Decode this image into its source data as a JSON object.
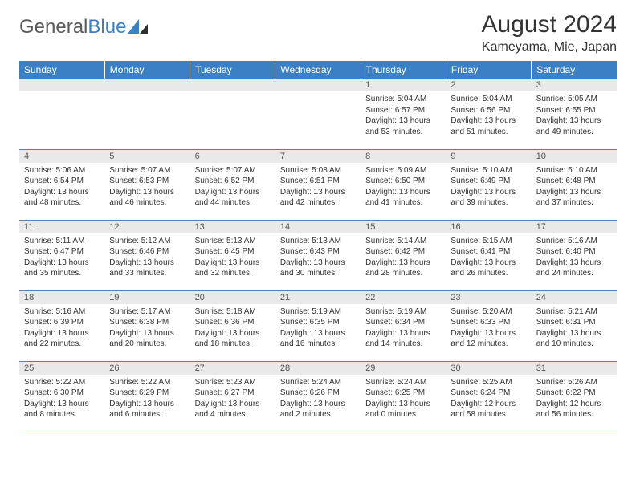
{
  "logo": {
    "text_part1": "General",
    "text_part2": "Blue"
  },
  "title": "August 2024",
  "subtitle": "Kameyama, Mie, Japan",
  "colors": {
    "header_bg": "#3b7fc4",
    "header_text": "#ffffff",
    "daynum_bg": "#e9e9e9",
    "cell_border": "#5a7fa8",
    "body_text": "#333333"
  },
  "typography": {
    "title_fontsize": 30,
    "subtitle_fontsize": 16,
    "weekday_fontsize": 12,
    "daynum_fontsize": 11,
    "body_fontsize": 10
  },
  "weekdays": [
    "Sunday",
    "Monday",
    "Tuesday",
    "Wednesday",
    "Thursday",
    "Friday",
    "Saturday"
  ],
  "weeks": [
    [
      null,
      null,
      null,
      null,
      {
        "n": "1",
        "sr": "Sunrise: 5:04 AM",
        "ss": "Sunset: 6:57 PM",
        "d1": "Daylight: 13 hours",
        "d2": "and 53 minutes."
      },
      {
        "n": "2",
        "sr": "Sunrise: 5:04 AM",
        "ss": "Sunset: 6:56 PM",
        "d1": "Daylight: 13 hours",
        "d2": "and 51 minutes."
      },
      {
        "n": "3",
        "sr": "Sunrise: 5:05 AM",
        "ss": "Sunset: 6:55 PM",
        "d1": "Daylight: 13 hours",
        "d2": "and 49 minutes."
      }
    ],
    [
      {
        "n": "4",
        "sr": "Sunrise: 5:06 AM",
        "ss": "Sunset: 6:54 PM",
        "d1": "Daylight: 13 hours",
        "d2": "and 48 minutes."
      },
      {
        "n": "5",
        "sr": "Sunrise: 5:07 AM",
        "ss": "Sunset: 6:53 PM",
        "d1": "Daylight: 13 hours",
        "d2": "and 46 minutes."
      },
      {
        "n": "6",
        "sr": "Sunrise: 5:07 AM",
        "ss": "Sunset: 6:52 PM",
        "d1": "Daylight: 13 hours",
        "d2": "and 44 minutes."
      },
      {
        "n": "7",
        "sr": "Sunrise: 5:08 AM",
        "ss": "Sunset: 6:51 PM",
        "d1": "Daylight: 13 hours",
        "d2": "and 42 minutes."
      },
      {
        "n": "8",
        "sr": "Sunrise: 5:09 AM",
        "ss": "Sunset: 6:50 PM",
        "d1": "Daylight: 13 hours",
        "d2": "and 41 minutes."
      },
      {
        "n": "9",
        "sr": "Sunrise: 5:10 AM",
        "ss": "Sunset: 6:49 PM",
        "d1": "Daylight: 13 hours",
        "d2": "and 39 minutes."
      },
      {
        "n": "10",
        "sr": "Sunrise: 5:10 AM",
        "ss": "Sunset: 6:48 PM",
        "d1": "Daylight: 13 hours",
        "d2": "and 37 minutes."
      }
    ],
    [
      {
        "n": "11",
        "sr": "Sunrise: 5:11 AM",
        "ss": "Sunset: 6:47 PM",
        "d1": "Daylight: 13 hours",
        "d2": "and 35 minutes."
      },
      {
        "n": "12",
        "sr": "Sunrise: 5:12 AM",
        "ss": "Sunset: 6:46 PM",
        "d1": "Daylight: 13 hours",
        "d2": "and 33 minutes."
      },
      {
        "n": "13",
        "sr": "Sunrise: 5:13 AM",
        "ss": "Sunset: 6:45 PM",
        "d1": "Daylight: 13 hours",
        "d2": "and 32 minutes."
      },
      {
        "n": "14",
        "sr": "Sunrise: 5:13 AM",
        "ss": "Sunset: 6:43 PM",
        "d1": "Daylight: 13 hours",
        "d2": "and 30 minutes."
      },
      {
        "n": "15",
        "sr": "Sunrise: 5:14 AM",
        "ss": "Sunset: 6:42 PM",
        "d1": "Daylight: 13 hours",
        "d2": "and 28 minutes."
      },
      {
        "n": "16",
        "sr": "Sunrise: 5:15 AM",
        "ss": "Sunset: 6:41 PM",
        "d1": "Daylight: 13 hours",
        "d2": "and 26 minutes."
      },
      {
        "n": "17",
        "sr": "Sunrise: 5:16 AM",
        "ss": "Sunset: 6:40 PM",
        "d1": "Daylight: 13 hours",
        "d2": "and 24 minutes."
      }
    ],
    [
      {
        "n": "18",
        "sr": "Sunrise: 5:16 AM",
        "ss": "Sunset: 6:39 PM",
        "d1": "Daylight: 13 hours",
        "d2": "and 22 minutes."
      },
      {
        "n": "19",
        "sr": "Sunrise: 5:17 AM",
        "ss": "Sunset: 6:38 PM",
        "d1": "Daylight: 13 hours",
        "d2": "and 20 minutes."
      },
      {
        "n": "20",
        "sr": "Sunrise: 5:18 AM",
        "ss": "Sunset: 6:36 PM",
        "d1": "Daylight: 13 hours",
        "d2": "and 18 minutes."
      },
      {
        "n": "21",
        "sr": "Sunrise: 5:19 AM",
        "ss": "Sunset: 6:35 PM",
        "d1": "Daylight: 13 hours",
        "d2": "and 16 minutes."
      },
      {
        "n": "22",
        "sr": "Sunrise: 5:19 AM",
        "ss": "Sunset: 6:34 PM",
        "d1": "Daylight: 13 hours",
        "d2": "and 14 minutes."
      },
      {
        "n": "23",
        "sr": "Sunrise: 5:20 AM",
        "ss": "Sunset: 6:33 PM",
        "d1": "Daylight: 13 hours",
        "d2": "and 12 minutes."
      },
      {
        "n": "24",
        "sr": "Sunrise: 5:21 AM",
        "ss": "Sunset: 6:31 PM",
        "d1": "Daylight: 13 hours",
        "d2": "and 10 minutes."
      }
    ],
    [
      {
        "n": "25",
        "sr": "Sunrise: 5:22 AM",
        "ss": "Sunset: 6:30 PM",
        "d1": "Daylight: 13 hours",
        "d2": "and 8 minutes."
      },
      {
        "n": "26",
        "sr": "Sunrise: 5:22 AM",
        "ss": "Sunset: 6:29 PM",
        "d1": "Daylight: 13 hours",
        "d2": "and 6 minutes."
      },
      {
        "n": "27",
        "sr": "Sunrise: 5:23 AM",
        "ss": "Sunset: 6:27 PM",
        "d1": "Daylight: 13 hours",
        "d2": "and 4 minutes."
      },
      {
        "n": "28",
        "sr": "Sunrise: 5:24 AM",
        "ss": "Sunset: 6:26 PM",
        "d1": "Daylight: 13 hours",
        "d2": "and 2 minutes."
      },
      {
        "n": "29",
        "sr": "Sunrise: 5:24 AM",
        "ss": "Sunset: 6:25 PM",
        "d1": "Daylight: 13 hours",
        "d2": "and 0 minutes."
      },
      {
        "n": "30",
        "sr": "Sunrise: 5:25 AM",
        "ss": "Sunset: 6:24 PM",
        "d1": "Daylight: 12 hours",
        "d2": "and 58 minutes."
      },
      {
        "n": "31",
        "sr": "Sunrise: 5:26 AM",
        "ss": "Sunset: 6:22 PM",
        "d1": "Daylight: 12 hours",
        "d2": "and 56 minutes."
      }
    ]
  ]
}
